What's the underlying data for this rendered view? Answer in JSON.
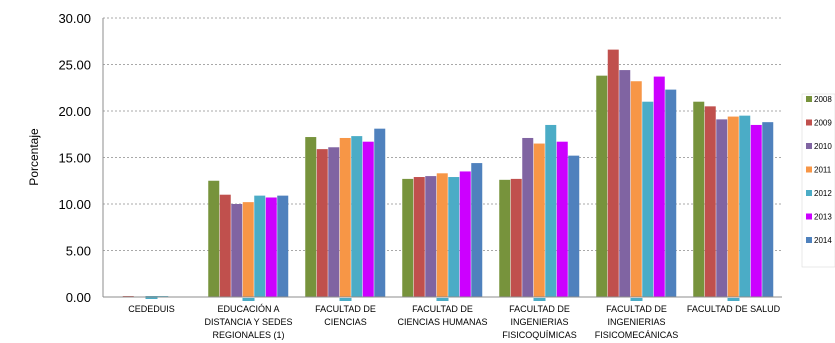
{
  "chart_data": {
    "type": "bar",
    "title": "",
    "xlabel": "",
    "ylabel": "Porcentaje",
    "ylim": [
      0,
      30
    ],
    "yticks": [
      "0.00",
      "5.00",
      "10.00",
      "15.00",
      "20.00",
      "25.00",
      "30.00"
    ],
    "grid": true,
    "legend_position": "right",
    "categories": [
      [
        "CEDEDUIS"
      ],
      [
        "EDUCACIÓN A",
        "DISTANCIA  Y SEDES",
        "REGIONALES (1)"
      ],
      [
        "FACULTAD DE",
        "CIENCIAS"
      ],
      [
        "FACULTAD DE",
        "CIENCIAS HUMANAS"
      ],
      [
        "FACULTAD DE",
        "INGENIERIAS",
        "FISICOQUÍMICAS"
      ],
      [
        "FACULTAD DE",
        "INGENIERIAS",
        "FISICOMECÁNICAS"
      ],
      [
        "FACULTAD DE SALUD"
      ]
    ],
    "series": [
      {
        "name": "2008",
        "color": "#77933C",
        "values": [
          0.0,
          12.5,
          17.2,
          12.7,
          12.6,
          23.8,
          21.0
        ]
      },
      {
        "name": "2009",
        "color": "#C0504D",
        "values": [
          0.1,
          11.0,
          15.9,
          12.9,
          12.7,
          26.6,
          20.5
        ]
      },
      {
        "name": "2010",
        "color": "#8064A2",
        "values": [
          0.05,
          10.0,
          16.1,
          13.0,
          17.1,
          24.4,
          19.1
        ]
      },
      {
        "name": "2011",
        "color": "#F79646",
        "values": [
          0.0,
          10.2,
          17.1,
          13.3,
          16.5,
          23.2,
          19.4
        ]
      },
      {
        "name": "2012",
        "color": "#4BACC6",
        "values": [
          0.1,
          10.9,
          17.3,
          12.9,
          18.5,
          21.0,
          19.5
        ]
      },
      {
        "name": "2013",
        "color": "#CC00FF",
        "values": [
          0.0,
          10.7,
          16.7,
          13.5,
          16.7,
          23.7,
          18.5
        ]
      },
      {
        "name": "2014",
        "color": "#4F81BD",
        "values": [
          0.0,
          10.9,
          18.1,
          14.4,
          15.2,
          22.3,
          18.8
        ]
      }
    ]
  }
}
